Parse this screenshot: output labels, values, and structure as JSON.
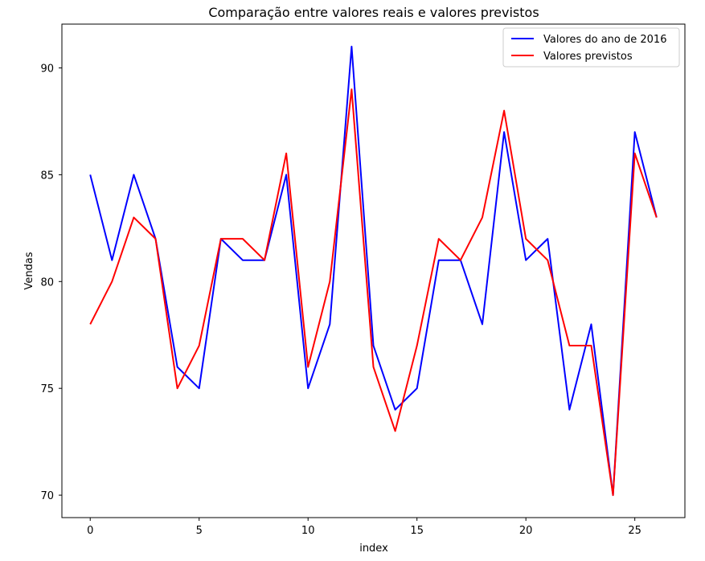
{
  "chart_data": {
    "type": "line",
    "title": "Comparação entre valores reais e valores previstos",
    "xlabel": "index",
    "ylabel": "Vendas",
    "x": [
      0,
      1,
      2,
      3,
      4,
      5,
      6,
      7,
      8,
      9,
      10,
      11,
      12,
      13,
      14,
      15,
      16,
      17,
      18,
      19,
      20,
      21,
      22,
      23,
      24,
      25,
      26
    ],
    "xlim": [
      -1.3,
      27.3
    ],
    "ylim": [
      68.95,
      92.05
    ],
    "xticks": [
      0,
      5,
      10,
      15,
      20,
      25
    ],
    "yticks": [
      70,
      75,
      80,
      85,
      90
    ],
    "grid": false,
    "legend_position": "upper right",
    "series": [
      {
        "name": "Valores do ano de 2016",
        "color": "#0000ff",
        "values": [
          85,
          81,
          85,
          82,
          76,
          75,
          82,
          81,
          81,
          85,
          75,
          78,
          91,
          77,
          74,
          75,
          81,
          81,
          78,
          87,
          81,
          82,
          74,
          78,
          70,
          87,
          83
        ]
      },
      {
        "name": "Valores previstos",
        "color": "#ff0000",
        "values": [
          78,
          80,
          83,
          82,
          75,
          77,
          82,
          82,
          81,
          86,
          76,
          80,
          89,
          76,
          73,
          77,
          82,
          81,
          83,
          88,
          82,
          81,
          77,
          77,
          70,
          86,
          83
        ]
      }
    ]
  }
}
